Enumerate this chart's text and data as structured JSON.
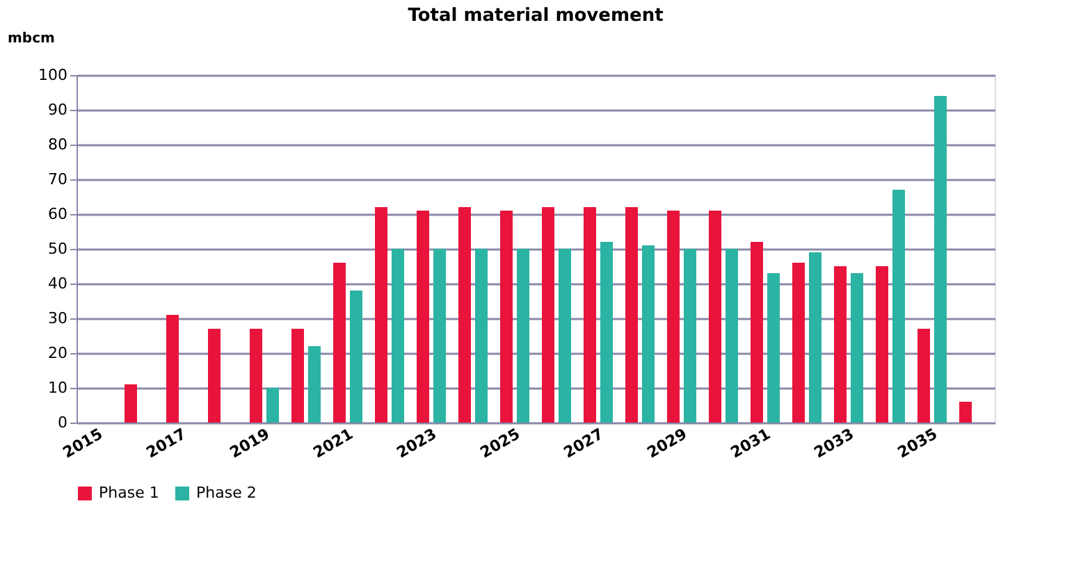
{
  "chart_data": {
    "type": "bar",
    "title": "Total material movement",
    "ylabel": "mbcm",
    "categories": [
      "2015",
      null,
      "2017",
      null,
      "2019",
      null,
      "2021",
      null,
      "2023",
      null,
      "2025",
      null,
      "2027",
      null,
      "2029",
      null,
      "2031",
      null,
      "2033",
      null,
      "2035",
      null
    ],
    "series": [
      {
        "name": "Phase 1",
        "color": "#e8143c",
        "values": [
          null,
          11,
          31,
          27,
          27,
          27,
          46,
          62,
          61,
          62,
          61,
          62,
          62,
          62,
          61,
          61,
          52,
          46,
          45,
          45,
          27,
          6
        ]
      },
      {
        "name": "Phase 2",
        "color": "#2bb3a3",
        "values": [
          null,
          null,
          null,
          null,
          10,
          22,
          38,
          50,
          50,
          50,
          50,
          50,
          52,
          51,
          50,
          50,
          43,
          49,
          43,
          67,
          94,
          null
        ]
      }
    ],
    "ylim": [
      0,
      100
    ],
    "yticks": [
      0,
      10,
      20,
      30,
      40,
      50,
      60,
      70,
      80,
      90,
      100
    ],
    "grid": "y",
    "legend": "bottom"
  }
}
